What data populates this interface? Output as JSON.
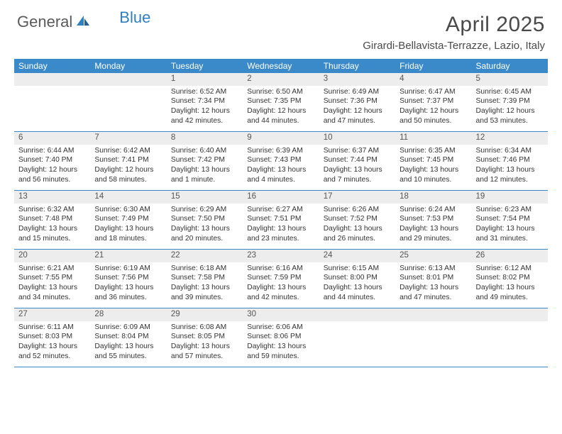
{
  "brand": {
    "text_dark": "General",
    "text_blue": "Blue"
  },
  "title": "April 2025",
  "location": "Girardi-Bellavista-Terrazze, Lazio, Italy",
  "colors": {
    "header_bg": "#3a8ac9",
    "header_text": "#ffffff",
    "band_bg": "#ededed",
    "rule": "#3a8ac9",
    "logo_dark": "#5a5a5a",
    "logo_blue": "#2f7fc1",
    "body_text": "#333333"
  },
  "day_names": [
    "Sunday",
    "Monday",
    "Tuesday",
    "Wednesday",
    "Thursday",
    "Friday",
    "Saturday"
  ],
  "weeks": [
    [
      {
        "empty": true
      },
      {
        "empty": true
      },
      {
        "num": "1",
        "sunrise": "Sunrise: 6:52 AM",
        "sunset": "Sunset: 7:34 PM",
        "daylight1": "Daylight: 12 hours",
        "daylight2": "and 42 minutes."
      },
      {
        "num": "2",
        "sunrise": "Sunrise: 6:50 AM",
        "sunset": "Sunset: 7:35 PM",
        "daylight1": "Daylight: 12 hours",
        "daylight2": "and 44 minutes."
      },
      {
        "num": "3",
        "sunrise": "Sunrise: 6:49 AM",
        "sunset": "Sunset: 7:36 PM",
        "daylight1": "Daylight: 12 hours",
        "daylight2": "and 47 minutes."
      },
      {
        "num": "4",
        "sunrise": "Sunrise: 6:47 AM",
        "sunset": "Sunset: 7:37 PM",
        "daylight1": "Daylight: 12 hours",
        "daylight2": "and 50 minutes."
      },
      {
        "num": "5",
        "sunrise": "Sunrise: 6:45 AM",
        "sunset": "Sunset: 7:39 PM",
        "daylight1": "Daylight: 12 hours",
        "daylight2": "and 53 minutes."
      }
    ],
    [
      {
        "num": "6",
        "sunrise": "Sunrise: 6:44 AM",
        "sunset": "Sunset: 7:40 PM",
        "daylight1": "Daylight: 12 hours",
        "daylight2": "and 56 minutes."
      },
      {
        "num": "7",
        "sunrise": "Sunrise: 6:42 AM",
        "sunset": "Sunset: 7:41 PM",
        "daylight1": "Daylight: 12 hours",
        "daylight2": "and 58 minutes."
      },
      {
        "num": "8",
        "sunrise": "Sunrise: 6:40 AM",
        "sunset": "Sunset: 7:42 PM",
        "daylight1": "Daylight: 13 hours",
        "daylight2": "and 1 minute."
      },
      {
        "num": "9",
        "sunrise": "Sunrise: 6:39 AM",
        "sunset": "Sunset: 7:43 PM",
        "daylight1": "Daylight: 13 hours",
        "daylight2": "and 4 minutes."
      },
      {
        "num": "10",
        "sunrise": "Sunrise: 6:37 AM",
        "sunset": "Sunset: 7:44 PM",
        "daylight1": "Daylight: 13 hours",
        "daylight2": "and 7 minutes."
      },
      {
        "num": "11",
        "sunrise": "Sunrise: 6:35 AM",
        "sunset": "Sunset: 7:45 PM",
        "daylight1": "Daylight: 13 hours",
        "daylight2": "and 10 minutes."
      },
      {
        "num": "12",
        "sunrise": "Sunrise: 6:34 AM",
        "sunset": "Sunset: 7:46 PM",
        "daylight1": "Daylight: 13 hours",
        "daylight2": "and 12 minutes."
      }
    ],
    [
      {
        "num": "13",
        "sunrise": "Sunrise: 6:32 AM",
        "sunset": "Sunset: 7:48 PM",
        "daylight1": "Daylight: 13 hours",
        "daylight2": "and 15 minutes."
      },
      {
        "num": "14",
        "sunrise": "Sunrise: 6:30 AM",
        "sunset": "Sunset: 7:49 PM",
        "daylight1": "Daylight: 13 hours",
        "daylight2": "and 18 minutes."
      },
      {
        "num": "15",
        "sunrise": "Sunrise: 6:29 AM",
        "sunset": "Sunset: 7:50 PM",
        "daylight1": "Daylight: 13 hours",
        "daylight2": "and 20 minutes."
      },
      {
        "num": "16",
        "sunrise": "Sunrise: 6:27 AM",
        "sunset": "Sunset: 7:51 PM",
        "daylight1": "Daylight: 13 hours",
        "daylight2": "and 23 minutes."
      },
      {
        "num": "17",
        "sunrise": "Sunrise: 6:26 AM",
        "sunset": "Sunset: 7:52 PM",
        "daylight1": "Daylight: 13 hours",
        "daylight2": "and 26 minutes."
      },
      {
        "num": "18",
        "sunrise": "Sunrise: 6:24 AM",
        "sunset": "Sunset: 7:53 PM",
        "daylight1": "Daylight: 13 hours",
        "daylight2": "and 29 minutes."
      },
      {
        "num": "19",
        "sunrise": "Sunrise: 6:23 AM",
        "sunset": "Sunset: 7:54 PM",
        "daylight1": "Daylight: 13 hours",
        "daylight2": "and 31 minutes."
      }
    ],
    [
      {
        "num": "20",
        "sunrise": "Sunrise: 6:21 AM",
        "sunset": "Sunset: 7:55 PM",
        "daylight1": "Daylight: 13 hours",
        "daylight2": "and 34 minutes."
      },
      {
        "num": "21",
        "sunrise": "Sunrise: 6:19 AM",
        "sunset": "Sunset: 7:56 PM",
        "daylight1": "Daylight: 13 hours",
        "daylight2": "and 36 minutes."
      },
      {
        "num": "22",
        "sunrise": "Sunrise: 6:18 AM",
        "sunset": "Sunset: 7:58 PM",
        "daylight1": "Daylight: 13 hours",
        "daylight2": "and 39 minutes."
      },
      {
        "num": "23",
        "sunrise": "Sunrise: 6:16 AM",
        "sunset": "Sunset: 7:59 PM",
        "daylight1": "Daylight: 13 hours",
        "daylight2": "and 42 minutes."
      },
      {
        "num": "24",
        "sunrise": "Sunrise: 6:15 AM",
        "sunset": "Sunset: 8:00 PM",
        "daylight1": "Daylight: 13 hours",
        "daylight2": "and 44 minutes."
      },
      {
        "num": "25",
        "sunrise": "Sunrise: 6:13 AM",
        "sunset": "Sunset: 8:01 PM",
        "daylight1": "Daylight: 13 hours",
        "daylight2": "and 47 minutes."
      },
      {
        "num": "26",
        "sunrise": "Sunrise: 6:12 AM",
        "sunset": "Sunset: 8:02 PM",
        "daylight1": "Daylight: 13 hours",
        "daylight2": "and 49 minutes."
      }
    ],
    [
      {
        "num": "27",
        "sunrise": "Sunrise: 6:11 AM",
        "sunset": "Sunset: 8:03 PM",
        "daylight1": "Daylight: 13 hours",
        "daylight2": "and 52 minutes."
      },
      {
        "num": "28",
        "sunrise": "Sunrise: 6:09 AM",
        "sunset": "Sunset: 8:04 PM",
        "daylight1": "Daylight: 13 hours",
        "daylight2": "and 55 minutes."
      },
      {
        "num": "29",
        "sunrise": "Sunrise: 6:08 AM",
        "sunset": "Sunset: 8:05 PM",
        "daylight1": "Daylight: 13 hours",
        "daylight2": "and 57 minutes."
      },
      {
        "num": "30",
        "sunrise": "Sunrise: 6:06 AM",
        "sunset": "Sunset: 8:06 PM",
        "daylight1": "Daylight: 13 hours",
        "daylight2": "and 59 minutes."
      },
      {
        "empty": true
      },
      {
        "empty": true
      },
      {
        "empty": true
      }
    ]
  ]
}
